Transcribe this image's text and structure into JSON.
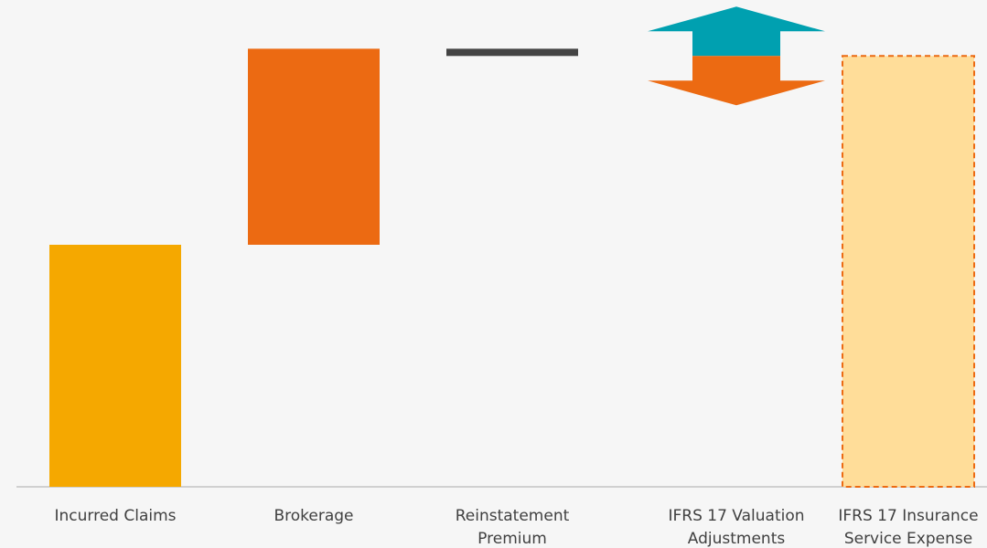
{
  "chart_data": {
    "type": "waterfall",
    "categories": [
      "Incurred Claims",
      "Brokerage",
      "Reinstatement Premium",
      "IFRS 17 Valuation Adjustments",
      "IFRS 17 Insurance Service Expense"
    ],
    "values": [
      100,
      81,
      -3,
      null,
      178
    ],
    "colors": [
      "#f5a800",
      "#ec6a12",
      "#444444",
      null,
      "#ffdd99"
    ],
    "ylim": [
      0,
      200
    ]
  }
}
